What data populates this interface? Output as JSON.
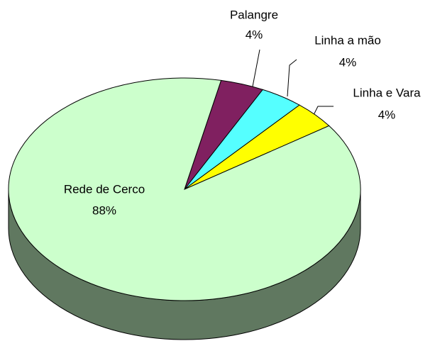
{
  "chart_data": {
    "type": "pie",
    "categories": [
      "Palangre",
      "Linha a mão",
      "Linha e Vara",
      "Rede de Cerco"
    ],
    "values": [
      4,
      4,
      4,
      88
    ],
    "value_labels": [
      "4%",
      "4%",
      "4%",
      "88%"
    ],
    "colors": [
      "#802060",
      "#55ffff",
      "#ffff00",
      "#ccffcc"
    ]
  }
}
